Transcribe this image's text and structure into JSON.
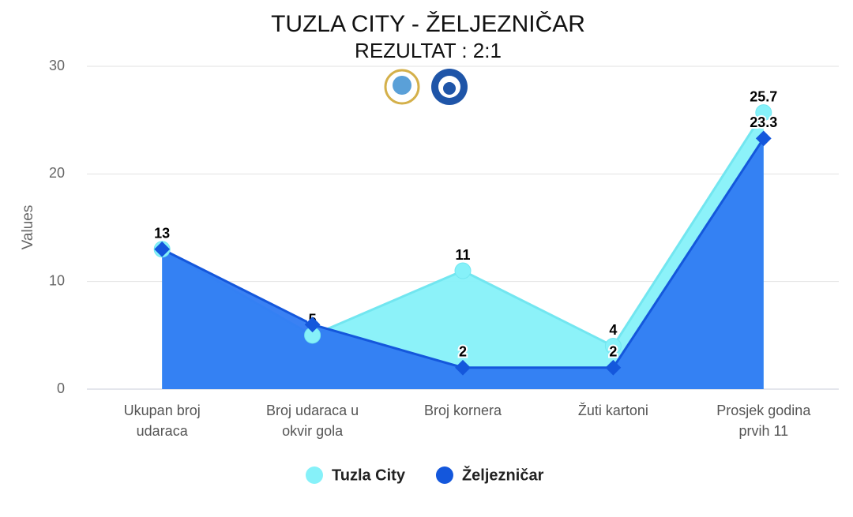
{
  "chart_data": {
    "type": "area",
    "title": "TUZLA CITY - ŽELJEZNIČAR",
    "subtitle": "REZULTAT : 2:1",
    "y_label": "Values",
    "categories": [
      [
        "Ukupan broj",
        "udaraca"
      ],
      [
        "Broj udaraca u",
        "okvir gola"
      ],
      [
        "Broj kornera"
      ],
      [
        "Žuti kartoni"
      ],
      [
        "Prosjek godina",
        "prvih 11"
      ]
    ],
    "series": [
      {
        "name": "Tuzla City",
        "color": "#86f1f9",
        "line_color": "#72e6f0",
        "marker": "circle",
        "values": [
          13,
          5,
          11,
          4,
          25.7
        ],
        "value_labels": [
          "13",
          "5",
          "11",
          "4",
          "25.7"
        ]
      },
      {
        "name": "Željezničar",
        "color": "#2f7af2",
        "line_color": "#1457dc",
        "marker": "diamond",
        "values": [
          13,
          6,
          2,
          2,
          23.3
        ],
        "value_labels": [
          "13",
          null,
          "2",
          "2",
          "23.3"
        ]
      }
    ],
    "ylim": [
      0,
      30
    ],
    "yticks": [
      0,
      10,
      20,
      30
    ],
    "grid": true,
    "legend": "bottom"
  }
}
